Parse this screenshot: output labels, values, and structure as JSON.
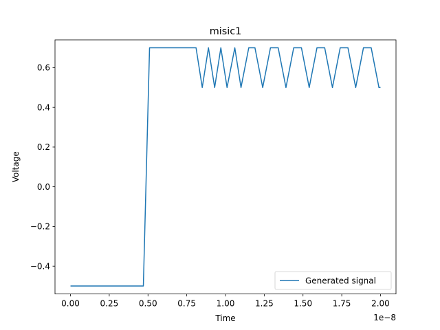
{
  "chart_data": {
    "type": "line",
    "title": "misic1",
    "xlabel": "Time",
    "ylabel": "Voltage",
    "x_offset_label": "1e−8",
    "xlim": [
      -0.1,
      2.1
    ],
    "ylim": [
      -0.54,
      0.74
    ],
    "x_ticks": [
      0.0,
      0.25,
      0.5,
      0.75,
      1.0,
      1.25,
      1.5,
      1.75,
      2.0
    ],
    "x_tick_labels": [
      "0.00",
      "0.25",
      "0.50",
      "0.75",
      "1.00",
      "1.25",
      "1.50",
      "1.75",
      "2.00"
    ],
    "y_ticks": [
      -0.4,
      -0.2,
      0.0,
      0.2,
      0.4,
      0.6
    ],
    "y_tick_labels": [
      "−0.4",
      "−0.2",
      "0.0",
      "0.2",
      "0.4",
      "0.6"
    ],
    "grid": false,
    "legend_position": "lower-right",
    "series": [
      {
        "name": "Generated signal",
        "color": "#1f77b4",
        "x": [
          0.0,
          0.47,
          0.51,
          0.81,
          0.85,
          0.89,
          0.93,
          0.97,
          1.01,
          1.06,
          1.1,
          1.15,
          1.19,
          1.24,
          1.29,
          1.34,
          1.39,
          1.44,
          1.49,
          1.54,
          1.59,
          1.64,
          1.69,
          1.74,
          1.79,
          1.84,
          1.89,
          1.94,
          1.99,
          2.0
        ],
        "y": [
          -0.5,
          -0.5,
          0.7,
          0.7,
          0.5,
          0.7,
          0.5,
          0.7,
          0.5,
          0.7,
          0.5,
          0.7,
          0.7,
          0.5,
          0.7,
          0.7,
          0.5,
          0.7,
          0.7,
          0.5,
          0.7,
          0.7,
          0.5,
          0.7,
          0.7,
          0.5,
          0.7,
          0.7,
          0.5,
          0.5
        ]
      }
    ]
  }
}
